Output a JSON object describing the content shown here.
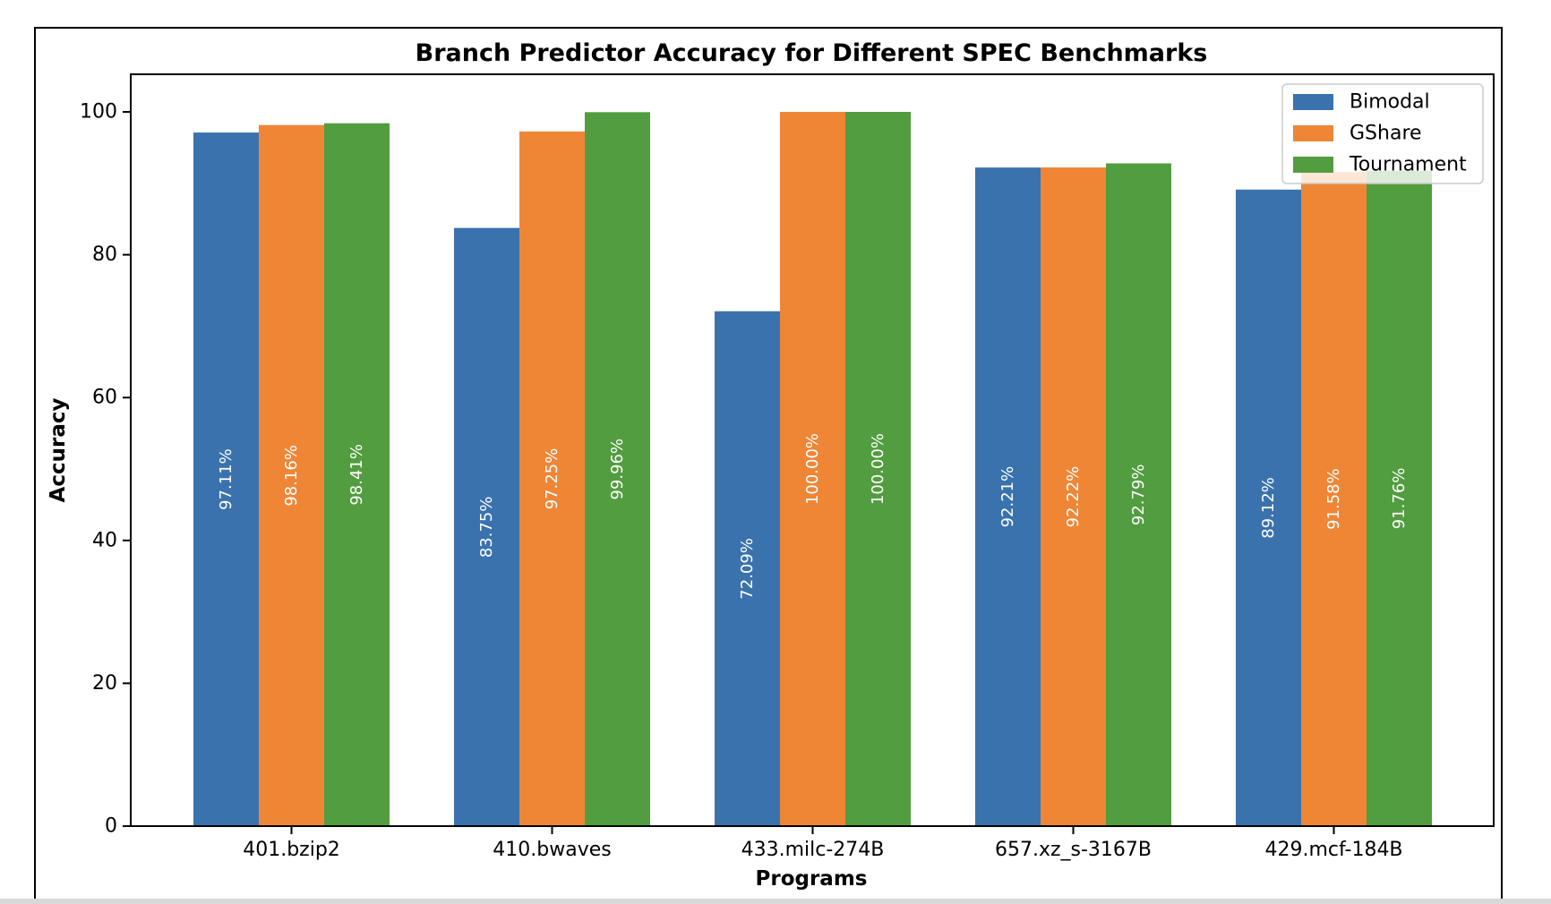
{
  "chart_data": {
    "type": "bar",
    "title": "Branch Predictor Accuracy for Different SPEC Benchmarks",
    "xlabel": "Programs",
    "ylabel": "Accuracy",
    "ylim": [
      0,
      105
    ],
    "yticks": [
      0,
      20,
      40,
      60,
      80,
      100
    ],
    "categories": [
      "401.bzip2",
      "410.bwaves",
      "433.milc-274B",
      "657.xz_s-3167B",
      "429.mcf-184B"
    ],
    "series": [
      {
        "name": "Bimodal",
        "color": "#3a72ae",
        "values": [
          97.11,
          83.75,
          72.09,
          92.21,
          89.12
        ],
        "labels": [
          "97.11%",
          "83.75%",
          "72.09%",
          "92.21%",
          "89.12%"
        ]
      },
      {
        "name": "GShare",
        "color": "#ee8636",
        "values": [
          98.16,
          97.25,
          100.0,
          92.22,
          91.58
        ],
        "labels": [
          "98.16%",
          "97.25%",
          "100.00%",
          "92.22%",
          "91.58%"
        ]
      },
      {
        "name": "Tournament",
        "color": "#529d3f",
        "values": [
          98.41,
          99.96,
          100.0,
          92.79,
          91.76
        ],
        "labels": [
          "98.41%",
          "99.96%",
          "100.00%",
          "92.79%",
          "91.76%"
        ]
      }
    ],
    "legend": "top-right",
    "grid": false
  }
}
